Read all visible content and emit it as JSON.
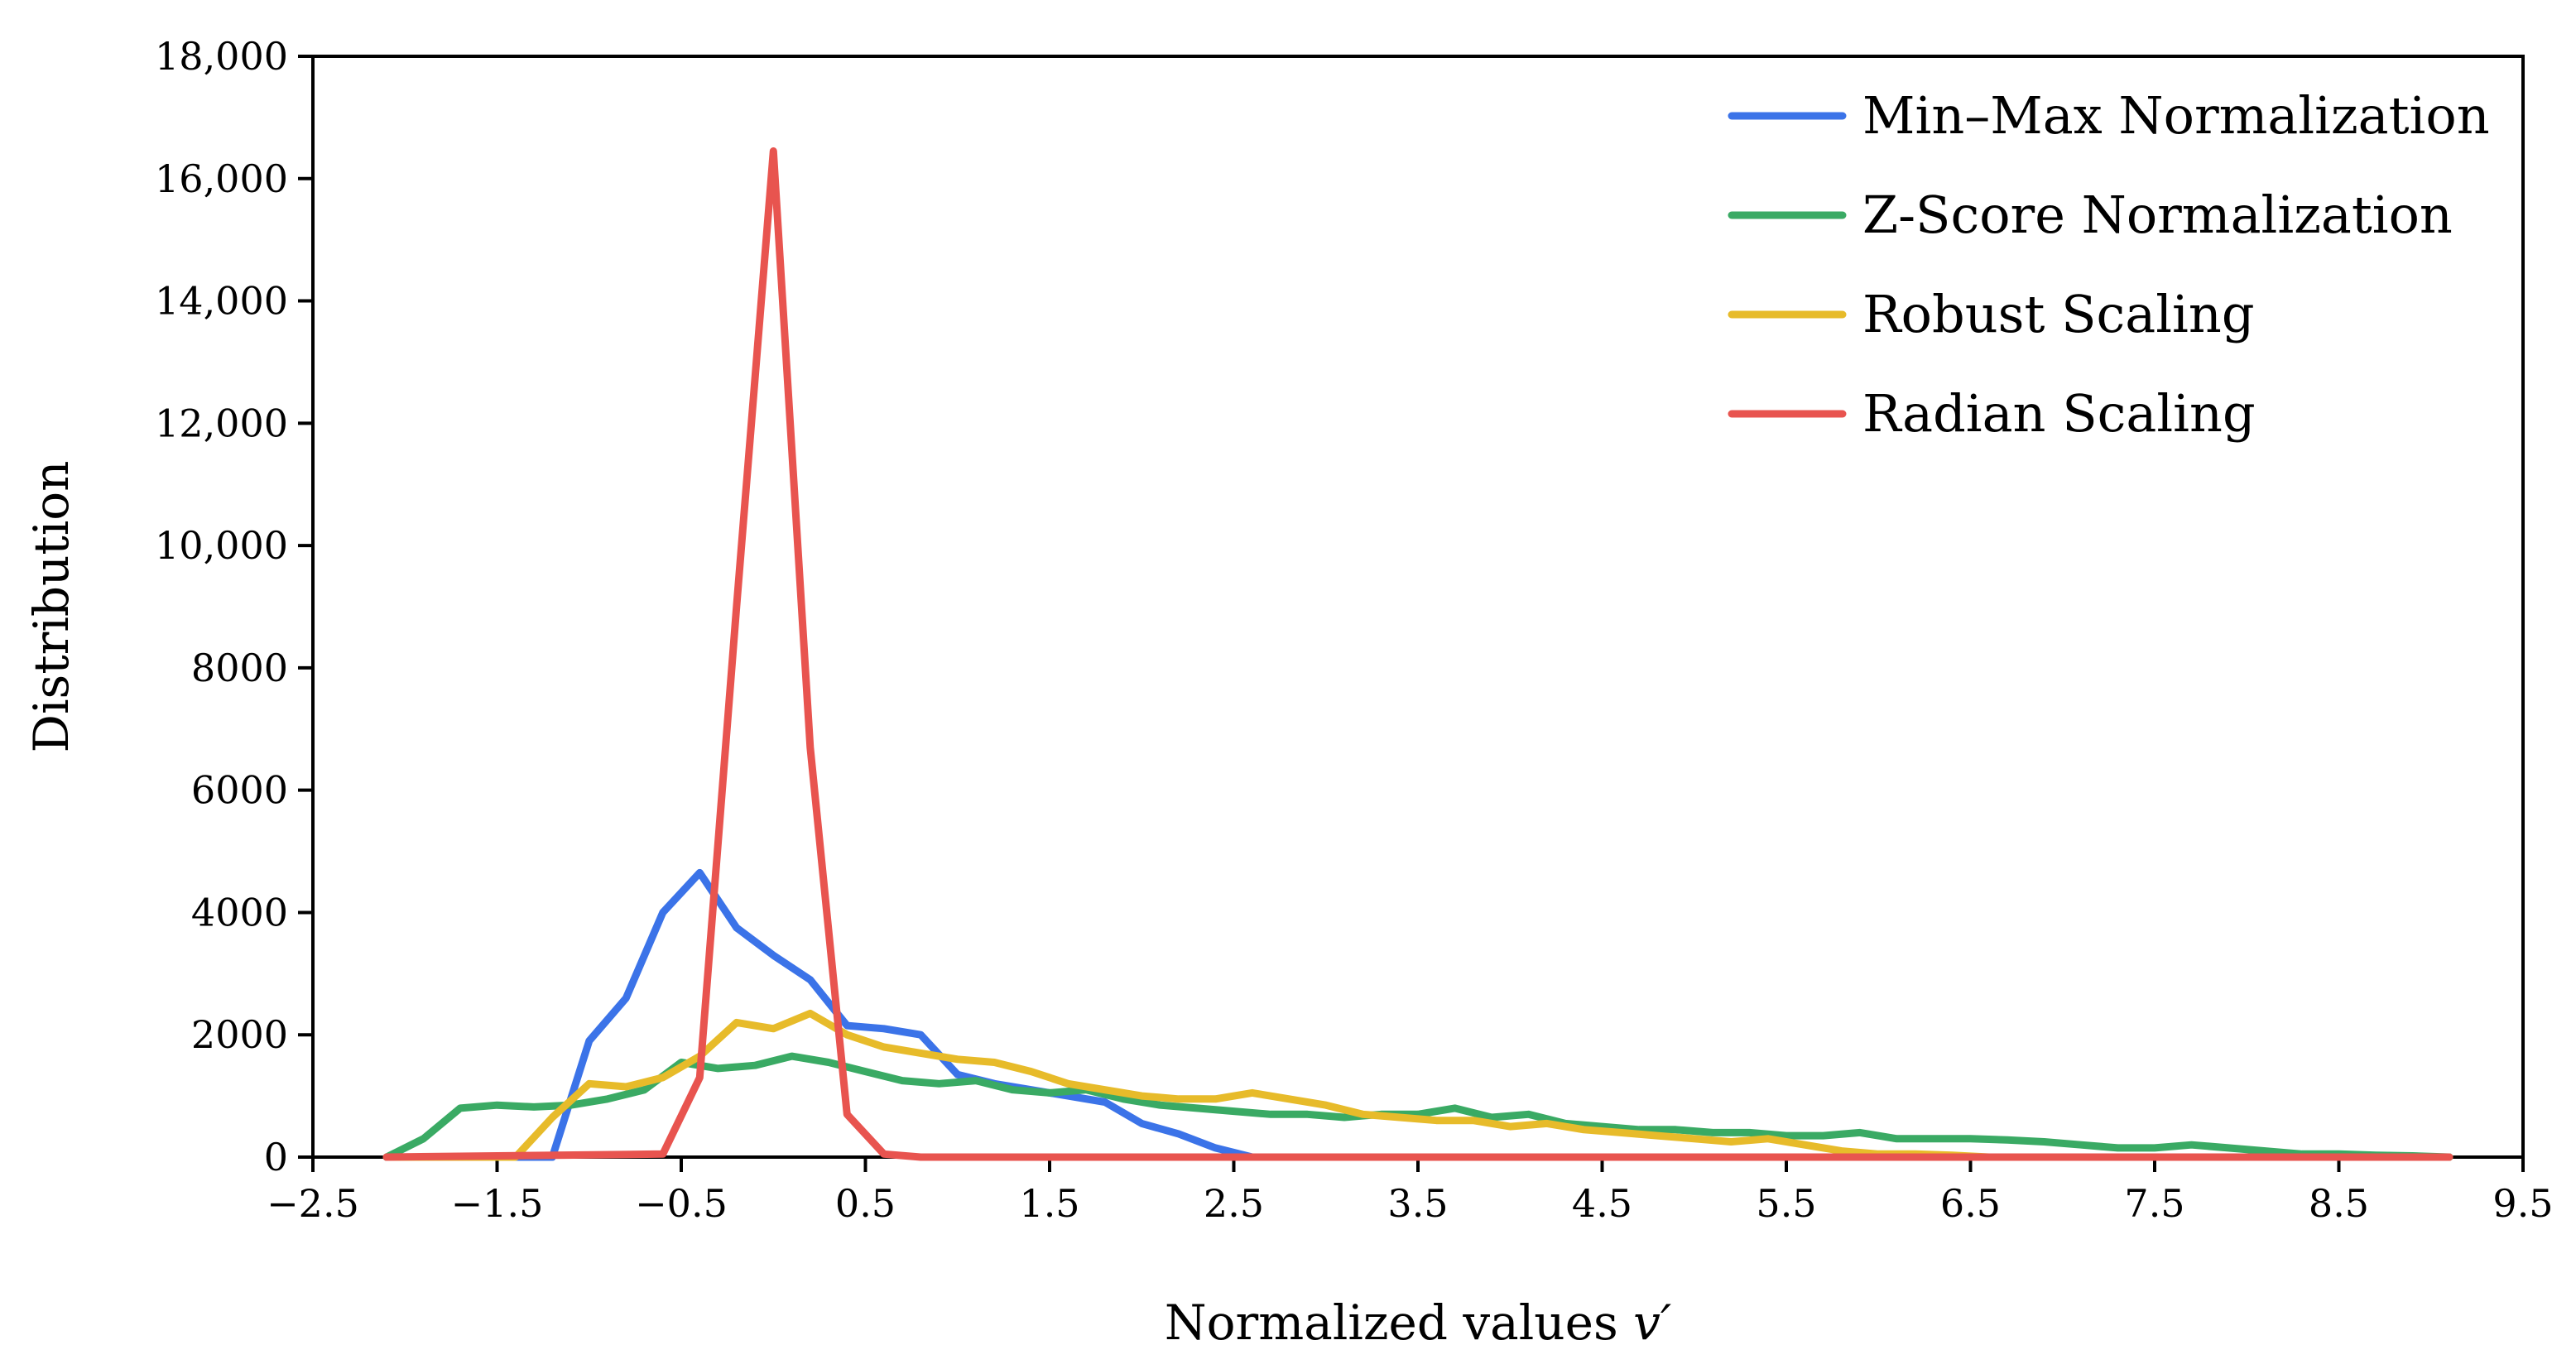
{
  "chart_data": {
    "type": "line",
    "title": "",
    "xlabel": "Normalized values",
    "xlabel_symbol": "v′",
    "ylabel": "Distribution",
    "xlim": [
      -2.5,
      9.5
    ],
    "ylim": [
      0,
      18000
    ],
    "xticks": [
      -2.5,
      -1.5,
      -0.5,
      0.5,
      1.5,
      2.5,
      3.5,
      4.5,
      5.5,
      6.5,
      7.5,
      8.5,
      9.5
    ],
    "xtick_labels": [
      "−2.5",
      "−1.5",
      "−0.5",
      "0.5",
      "1.5",
      "2.5",
      "3.5",
      "4.5",
      "5.5",
      "6.5",
      "7.5",
      "8.5",
      "9.5"
    ],
    "yticks": [
      0,
      2000,
      4000,
      6000,
      8000,
      10000,
      12000,
      14000,
      16000,
      18000
    ],
    "ytick_labels": [
      "0",
      "2000",
      "4000",
      "6000",
      "8000",
      "10,000",
      "12,000",
      "14,000",
      "16,000",
      "18,000"
    ],
    "grid": false,
    "legend_position": "top-right",
    "series": [
      {
        "name": "Min–Max Normalization",
        "color": "#3b73e8",
        "x": [
          -2.1,
          -1.2,
          -1.0,
          -0.8,
          -0.6,
          -0.4,
          -0.2,
          0.0,
          0.2,
          0.4,
          0.6,
          0.8,
          1.0,
          1.2,
          1.4,
          1.6,
          1.8,
          2.0,
          2.2,
          2.4,
          2.6,
          2.8,
          3.0,
          9.1
        ],
        "values": [
          0,
          0,
          1900,
          2600,
          4000,
          4650,
          3750,
          3300,
          2900,
          2150,
          2100,
          2000,
          1350,
          1200,
          1100,
          1000,
          900,
          550,
          380,
          150,
          0,
          0,
          0,
          0
        ]
      },
      {
        "name": "Z-Score Normalization",
        "color": "#3aaa64",
        "x": [
          -2.1,
          -1.9,
          -1.7,
          -1.5,
          -1.3,
          -1.1,
          -0.9,
          -0.7,
          -0.5,
          -0.3,
          -0.1,
          0.1,
          0.3,
          0.5,
          0.7,
          0.9,
          1.1,
          1.3,
          1.5,
          1.7,
          1.9,
          2.1,
          2.3,
          2.5,
          2.7,
          2.9,
          3.1,
          3.3,
          3.5,
          3.7,
          3.9,
          4.1,
          4.3,
          4.5,
          4.7,
          4.9,
          5.1,
          5.3,
          5.5,
          5.7,
          5.9,
          6.1,
          6.3,
          6.5,
          6.7,
          6.9,
          7.1,
          7.3,
          7.5,
          7.7,
          7.9,
          8.1,
          8.3,
          8.5,
          8.7,
          8.9,
          9.1
        ],
        "values": [
          0,
          300,
          800,
          850,
          820,
          850,
          950,
          1100,
          1550,
          1450,
          1500,
          1650,
          1550,
          1400,
          1250,
          1200,
          1250,
          1100,
          1050,
          1100,
          950,
          850,
          800,
          750,
          700,
          700,
          650,
          700,
          700,
          800,
          650,
          700,
          550,
          500,
          450,
          450,
          400,
          400,
          350,
          350,
          400,
          300,
          300,
          300,
          280,
          250,
          200,
          150,
          150,
          200,
          150,
          100,
          50,
          50,
          30,
          20,
          0
        ]
      },
      {
        "name": "Robust Scaling",
        "color": "#e7bb2a",
        "x": [
          -2.1,
          -1.4,
          -1.2,
          -1.0,
          -0.8,
          -0.6,
          -0.4,
          -0.2,
          0.0,
          0.2,
          0.4,
          0.6,
          0.8,
          1.0,
          1.2,
          1.4,
          1.6,
          1.8,
          2.0,
          2.2,
          2.4,
          2.6,
          2.8,
          3.0,
          3.2,
          3.4,
          3.6,
          3.8,
          4.0,
          4.2,
          4.4,
          4.6,
          4.8,
          5.0,
          5.2,
          5.4,
          5.6,
          5.8,
          6.0,
          6.2,
          6.4,
          6.6,
          9.1
        ],
        "values": [
          0,
          0,
          650,
          1200,
          1150,
          1300,
          1650,
          2200,
          2100,
          2350,
          2000,
          1800,
          1700,
          1600,
          1550,
          1400,
          1200,
          1100,
          1000,
          950,
          950,
          1050,
          950,
          850,
          700,
          650,
          600,
          600,
          500,
          550,
          450,
          400,
          350,
          300,
          250,
          300,
          200,
          100,
          50,
          50,
          30,
          0,
          0
        ]
      },
      {
        "name": "Radian Scaling",
        "color": "#e8544f",
        "x": [
          -2.1,
          -0.6,
          -0.4,
          -0.2,
          0.0,
          0.2,
          0.4,
          0.6,
          0.8,
          9.1
        ],
        "values": [
          0,
          50,
          1300,
          9000,
          16450,
          6700,
          700,
          50,
          0,
          0
        ]
      }
    ]
  }
}
